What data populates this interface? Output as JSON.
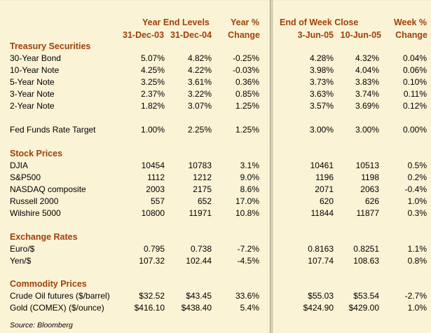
{
  "header": {
    "year_end_levels": "Year End Levels",
    "date_2003": "31-Dec-03",
    "date_2004": "31-Dec-04",
    "year_pct": "Year %",
    "year_change": "Change",
    "end_of_week_close": "End of Week Close",
    "date_jun3": "3-Jun-05",
    "date_jun10": "10-Jun-05",
    "week_pct": "Week %",
    "week_change": "Change"
  },
  "sections": {
    "treasury": "Treasury Securities",
    "stocks": "Stock Prices",
    "fx": "Exchange Rates",
    "commodities": "Commodity Prices"
  },
  "rows": [
    {
      "label": "30-Year Bond",
      "v1": "5.07%",
      "v2": "4.82%",
      "v3": "-0.25%",
      "v4": "4.28%",
      "v5": "4.32%",
      "v6": "0.04%"
    },
    {
      "label": "10-Year Note",
      "v1": "4.25%",
      "v2": "4.22%",
      "v3": "-0.03%",
      "v4": "3.98%",
      "v5": "4.04%",
      "v6": "0.06%"
    },
    {
      "label": "5-Year Note",
      "v1": "3.25%",
      "v2": "3.61%",
      "v3": "0.36%",
      "v4": "3.73%",
      "v5": "3.83%",
      "v6": "0.10%"
    },
    {
      "label": "3-Year Note",
      "v1": "2.37%",
      "v2": "3.22%",
      "v3": "0.85%",
      "v4": "3.63%",
      "v5": "3.74%",
      "v6": "0.11%"
    },
    {
      "label": "2-Year Note",
      "v1": "1.82%",
      "v2": "3.07%",
      "v3": "1.25%",
      "v4": "3.57%",
      "v5": "3.69%",
      "v6": "0.12%"
    },
    {
      "label": "Fed Funds Rate Target",
      "v1": "1.00%",
      "v2": "2.25%",
      "v3": "1.25%",
      "v4": "3.00%",
      "v5": "3.00%",
      "v6": "0.00%"
    },
    {
      "label": "DJIA",
      "v1": "10454",
      "v2": "10783",
      "v3": "3.1%",
      "v4": "10461",
      "v5": "10513",
      "v6": "0.5%"
    },
    {
      "label": "S&P500",
      "v1": "1112",
      "v2": "1212",
      "v3": "9.0%",
      "v4": "1196",
      "v5": "1198",
      "v6": "0.2%"
    },
    {
      "label": "NASDAQ composite",
      "v1": "2003",
      "v2": "2175",
      "v3": "8.6%",
      "v4": "2071",
      "v5": "2063",
      "v6": "-0.4%"
    },
    {
      "label": "Russell 2000",
      "v1": "557",
      "v2": "652",
      "v3": "17.0%",
      "v4": "620",
      "v5": "626",
      "v6": "1.0%"
    },
    {
      "label": "Wilshire 5000",
      "v1": "10800",
      "v2": "11971",
      "v3": "10.8%",
      "v4": "11844",
      "v5": "11877",
      "v6": "0.3%"
    },
    {
      "label": "Euro/$",
      "v1": "0.795",
      "v2": "0.738",
      "v3": "-7.2%",
      "v4": "0.8163",
      "v5": "0.8251",
      "v6": "1.1%"
    },
    {
      "label": "Yen/$",
      "v1": "107.32",
      "v2": "102.44",
      "v3": "-4.5%",
      "v4": "107.74",
      "v5": "108.63",
      "v6": "0.8%"
    },
    {
      "label": "Crude Oil futures ($/barrel)",
      "v1": "$32.52",
      "v2": "$43.45",
      "v3": "33.6%",
      "v4": "$55.03",
      "v5": "$53.54",
      "v6": "-2.7%"
    },
    {
      "label": "Gold (COMEX) ($/ounce)",
      "v1": "$416.10",
      "v2": "$438.40",
      "v3": "5.4%",
      "v4": "$424.90",
      "v5": "$429.00",
      "v6": "1.0%"
    }
  ],
  "source": "Source: Bloomberg"
}
